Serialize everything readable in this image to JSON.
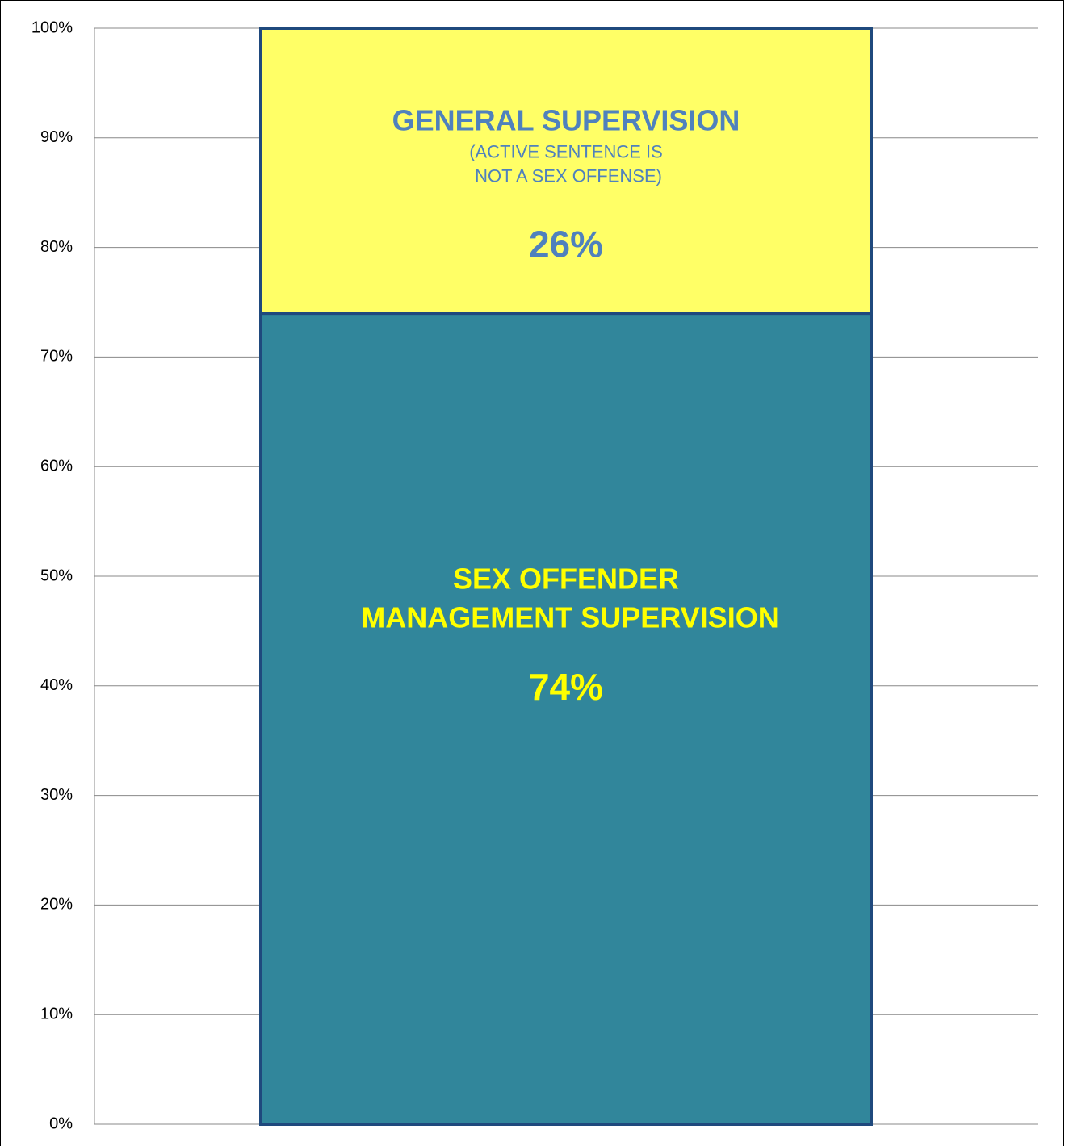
{
  "chart_data": {
    "type": "stacked_bar",
    "categories": [
      null
    ],
    "series": [
      {
        "name": "SEX OFFENDER MANAGEMENT SUPERVISION",
        "color": "#31869b",
        "label_color": "#ffff00",
        "values": [
          74
        ],
        "value_labels": [
          "74%"
        ]
      },
      {
        "name": "GENERAL SUPERVISION",
        "note": "(ACTIVE SENTENCE IS NOT A SEX OFFENSE)",
        "color": "#ffff66",
        "label_color": "#4f81bd",
        "values": [
          26
        ],
        "value_labels": [
          "26%"
        ]
      }
    ],
    "border_color": "#1f497d",
    "ylim": [
      0,
      100
    ],
    "yticks": [
      {
        "value": 0,
        "label": "0%"
      },
      {
        "value": 10,
        "label": "10%"
      },
      {
        "value": 20,
        "label": "20%"
      },
      {
        "value": 30,
        "label": "30%"
      },
      {
        "value": 40,
        "label": "40%"
      },
      {
        "value": 50,
        "label": "50%"
      },
      {
        "value": 60,
        "label": "60%"
      },
      {
        "value": 70,
        "label": "70%"
      },
      {
        "value": 80,
        "label": "80%"
      },
      {
        "value": 90,
        "label": "90%"
      },
      {
        "value": 100,
        "label": "100%"
      }
    ],
    "grid": true
  }
}
